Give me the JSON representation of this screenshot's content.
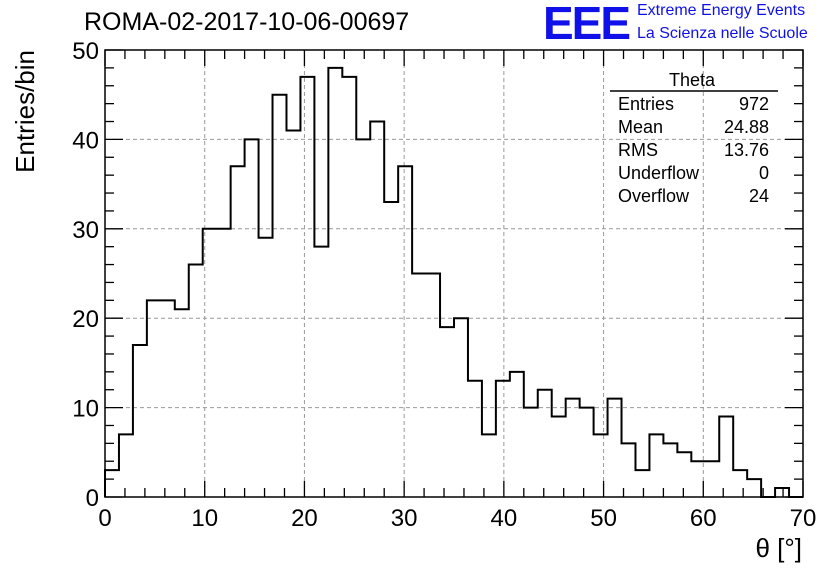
{
  "header": {
    "run_id": "ROMA-02-2017-10-06-00697",
    "logo_mark": "EEE",
    "logo_line1": "Extreme Energy Events",
    "logo_line2": "La Scienza nelle Scuole"
  },
  "colors": {
    "logo": "#1010e8",
    "histogram_line": "#000000",
    "grid": "#999999"
  },
  "stats_box": {
    "title": "Theta",
    "rows": [
      {
        "label": "Entries",
        "value": "972"
      },
      {
        "label": "Mean",
        "value": "24.88"
      },
      {
        "label": "RMS",
        "value": "13.76"
      },
      {
        "label": "Underflow",
        "value": "0"
      },
      {
        "label": "Overflow",
        "value": "24"
      }
    ]
  },
  "chart_data": {
    "type": "histogram",
    "xlabel": "θ [°]",
    "ylabel": "Entries/bin",
    "xlim": [
      0,
      70
    ],
    "ylim": [
      0,
      50
    ],
    "xticks": [
      0,
      10,
      20,
      30,
      40,
      50,
      60,
      70
    ],
    "yticks": [
      0,
      10,
      20,
      30,
      40,
      50
    ],
    "grid": true,
    "bin_width": 1.4,
    "bin_edges_start": 0,
    "values": [
      3,
      7,
      17,
      22,
      22,
      21,
      26,
      30,
      30,
      37,
      40,
      29,
      45,
      41,
      47,
      28,
      48,
      47,
      40,
      42,
      33,
      37,
      25,
      25,
      19,
      20,
      13,
      7,
      13,
      14,
      10,
      12,
      9,
      11,
      10,
      7,
      11,
      6,
      3,
      7,
      6,
      5,
      4,
      4,
      9,
      3,
      2,
      0,
      1,
      0
    ]
  }
}
